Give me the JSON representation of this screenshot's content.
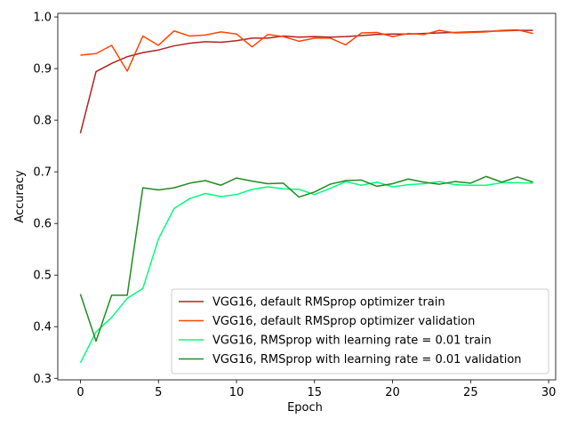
{
  "chart_data": {
    "type": "line",
    "title": "",
    "xlabel": "Epoch",
    "ylabel": "Accuracy",
    "xlim": [
      -1.45,
      30.45
    ],
    "ylim": [
      0.297,
      1.007
    ],
    "xticks": [
      0,
      5,
      10,
      15,
      20,
      25,
      30
    ],
    "yticks": [
      0.3,
      0.4,
      0.5,
      0.6,
      0.7,
      0.8,
      0.9,
      1.0
    ],
    "xtick_labels": [
      "0",
      "5",
      "10",
      "15",
      "20",
      "25",
      "30"
    ],
    "ytick_labels": [
      "0.3",
      "0.4",
      "0.5",
      "0.6",
      "0.7",
      "0.8",
      "0.9",
      "1.0"
    ],
    "grid": false,
    "legend_position": "lower-right",
    "x": [
      0,
      1,
      2,
      3,
      4,
      5,
      6,
      7,
      8,
      9,
      10,
      11,
      12,
      13,
      14,
      15,
      16,
      17,
      18,
      19,
      20,
      21,
      22,
      23,
      24,
      25,
      26,
      27,
      28,
      29
    ],
    "series": [
      {
        "name": "VGG16, default RMSprop optimizer train",
        "color": "#b22222",
        "values": [
          0.775,
          0.894,
          0.91,
          0.923,
          0.931,
          0.936,
          0.944,
          0.949,
          0.952,
          0.951,
          0.954,
          0.959,
          0.959,
          0.963,
          0.961,
          0.962,
          0.961,
          0.962,
          0.964,
          0.966,
          0.967,
          0.967,
          0.968,
          0.969,
          0.97,
          0.971,
          0.972,
          0.973,
          0.974,
          0.974
        ]
      },
      {
        "name": "VGG16, default RMSprop optimizer validation",
        "color": "#ff4500",
        "values": [
          0.926,
          0.929,
          0.945,
          0.895,
          0.963,
          0.945,
          0.973,
          0.963,
          0.965,
          0.971,
          0.967,
          0.942,
          0.966,
          0.962,
          0.953,
          0.959,
          0.959,
          0.946,
          0.969,
          0.97,
          0.962,
          0.968,
          0.966,
          0.974,
          0.969,
          0.97,
          0.971,
          0.974,
          0.975,
          0.968
        ]
      },
      {
        "name": "VGG16, RMSprop with learning rate = 0.01 train",
        "color": "#00ff7f",
        "values": [
          0.33,
          0.39,
          0.418,
          0.455,
          0.474,
          0.57,
          0.629,
          0.648,
          0.658,
          0.652,
          0.656,
          0.666,
          0.671,
          0.667,
          0.666,
          0.656,
          0.668,
          0.681,
          0.674,
          0.68,
          0.671,
          0.675,
          0.677,
          0.681,
          0.675,
          0.674,
          0.674,
          0.679,
          0.679,
          0.678
        ]
      },
      {
        "name": "VGG16, RMSprop with learning rate = 0.01 validation",
        "color": "#228b22",
        "values": [
          0.463,
          0.372,
          0.461,
          0.461,
          0.669,
          0.665,
          0.669,
          0.678,
          0.683,
          0.674,
          0.688,
          0.682,
          0.677,
          0.678,
          0.651,
          0.661,
          0.676,
          0.683,
          0.684,
          0.672,
          0.677,
          0.686,
          0.68,
          0.676,
          0.681,
          0.678,
          0.691,
          0.68,
          0.69,
          0.68
        ]
      }
    ]
  }
}
